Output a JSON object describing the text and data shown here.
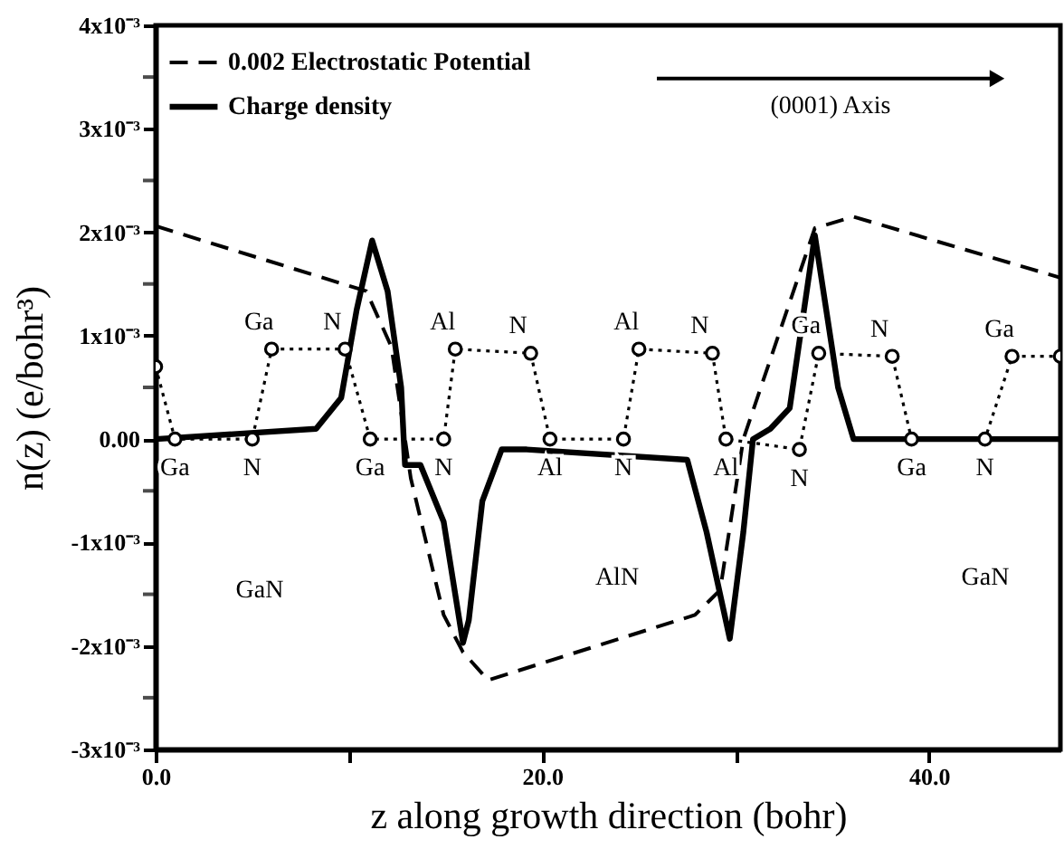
{
  "chart_data": {
    "type": "line",
    "xlabel": "z along growth direction (bohr)",
    "ylabel": "n(z) (e/bohr³)",
    "xlim": [
      0,
      46.8
    ],
    "ylim": [
      -0.003,
      0.004
    ],
    "xticks": [
      {
        "value": 0,
        "label": "0.0"
      },
      {
        "value": 10,
        "label": null
      },
      {
        "value": 20,
        "label": "20.0"
      },
      {
        "value": 30,
        "label": null
      },
      {
        "value": 40,
        "label": "40.0"
      }
    ],
    "yticks": [
      {
        "value": -0.003,
        "label": "-3x10⁻³"
      },
      {
        "value": -0.0025,
        "label": null
      },
      {
        "value": -0.002,
        "label": "-2x10⁻³"
      },
      {
        "value": -0.0015,
        "label": null
      },
      {
        "value": -0.001,
        "label": "-1x10⁻³"
      },
      {
        "value": -0.0005,
        "label": null
      },
      {
        "value": 0,
        "label": "0.00"
      },
      {
        "value": 0.0005,
        "label": null
      },
      {
        "value": 0.001,
        "label": "1x10⁻³"
      },
      {
        "value": 0.0015,
        "label": null
      },
      {
        "value": 0.002,
        "label": "2x10⁻³"
      },
      {
        "value": 0.0025,
        "label": null
      },
      {
        "value": 0.003,
        "label": "3x10⁻³"
      },
      {
        "value": 0.0035,
        "label": null
      },
      {
        "value": 0.004,
        "label": "4x10⁻³"
      }
    ],
    "legend": "top left",
    "series": [
      {
        "name": "0.002 Electrostatic Potential",
        "color": "#000000",
        "line_style": "dashed",
        "x": [
          0,
          10.9,
          12.2,
          13.2,
          14.9,
          15.9,
          17.2,
          27.9,
          29.2,
          30.4,
          34.1,
          36.1,
          46.8
        ],
        "values": [
          0.00206,
          0.00143,
          0.00089,
          -0.00038,
          -0.0017,
          -0.00206,
          -0.00233,
          -0.0017,
          -0.00146,
          0,
          0.00204,
          0.00215,
          0.00156
        ]
      },
      {
        "name": "Charge density",
        "color": "#000000",
        "line_style": "solid",
        "x": [
          0,
          8.3,
          9.6,
          10.4,
          11.2,
          12.0,
          12.7,
          12.9,
          13.7,
          14.9,
          15.9,
          16.2,
          16.9,
          17.9,
          19.2,
          27.5,
          28.5,
          29.7,
          30.4,
          30.9,
          31.8,
          32.8,
          34.1,
          35.3,
          36.1,
          37.5,
          46.8
        ],
        "values": [
          0,
          0.0001,
          0.0004,
          0.00125,
          0.00192,
          0.00143,
          0.0005,
          -0.00025,
          -0.00025,
          -0.0008,
          -0.00197,
          -0.00175,
          -0.0006,
          -0.0001,
          -0.0001,
          -0.0002,
          -0.0009,
          -0.00193,
          -0.0009,
          0,
          0.0001,
          0.0003,
          0.00197,
          0.0005,
          0,
          0,
          0
        ]
      },
      {
        "color": "#000000",
        "line_style": "dotted",
        "marker": "circle",
        "x": [
          0,
          1.0,
          5.0,
          6.0,
          9.8,
          11.1,
          14.9,
          15.5,
          19.4,
          20.4,
          24.2,
          25.0,
          28.8,
          29.5,
          33.3,
          34.3,
          38.1,
          39.1,
          42.9,
          44.3,
          46.8
        ],
        "values": [
          0.0007,
          0,
          0,
          0.00087,
          0.00087,
          0,
          0,
          0.00087,
          0.00083,
          0,
          0,
          0.00087,
          0.00083,
          0,
          -0.0001,
          0.00083,
          0.0008,
          0,
          0,
          0.0008,
          0.0008
        ]
      }
    ],
    "annotations": [
      "(0001) Axis",
      "GaN",
      "AlN",
      "GaN",
      {
        "text": "Ga",
        "x": 1.0,
        "y": 0
      },
      {
        "text": "N",
        "x": 5.0,
        "y": 0
      },
      {
        "text": "Ga",
        "x": 6.0,
        "y": 0.00087
      },
      {
        "text": "N",
        "x": 9.8,
        "y": 0.00087
      },
      {
        "text": "Ga",
        "x": 11.1,
        "y": 0
      },
      {
        "text": "N",
        "x": 14.9,
        "y": 0
      },
      {
        "text": "Al",
        "x": 15.5,
        "y": 0.00087
      },
      {
        "text": "N",
        "x": 19.4,
        "y": 0.00083
      },
      {
        "text": "Al",
        "x": 20.4,
        "y": 0
      },
      {
        "text": "N",
        "x": 24.2,
        "y": 0
      },
      {
        "text": "Al",
        "x": 25.0,
        "y": 0.00087
      },
      {
        "text": "N",
        "x": 28.8,
        "y": 0.00083
      },
      {
        "text": "Al",
        "x": 29.5,
        "y": 0
      },
      {
        "text": "N",
        "x": 33.3,
        "y": -0.0001
      },
      {
        "text": "Ga",
        "x": 34.3,
        "y": 0.00083
      },
      {
        "text": "N",
        "x": 38.1,
        "y": 0.0008
      },
      {
        "text": "Ga",
        "x": 39.1,
        "y": 0
      },
      {
        "text": "N",
        "x": 42.9,
        "y": 0
      },
      {
        "text": "Ga",
        "x": 44.3,
        "y": 0.0008
      }
    ]
  }
}
